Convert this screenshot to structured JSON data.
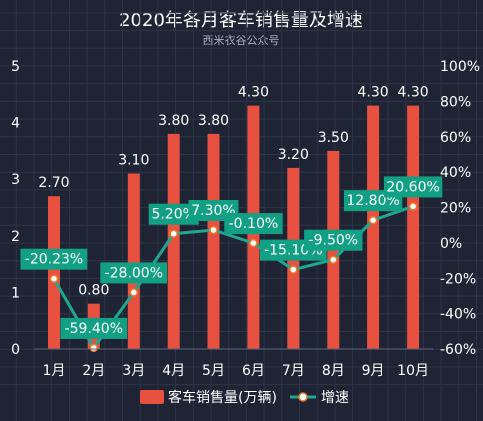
{
  "chart_data": {
    "type": "bar",
    "title": "2020年各月客车销售量及增速",
    "subtitle": "西米衣谷公众号",
    "categories": [
      "1月",
      "2月",
      "3月",
      "4月",
      "5月",
      "6月",
      "7月",
      "8月",
      "9月",
      "10月"
    ],
    "series": [
      {
        "name": "客车销售量(万辆)",
        "type": "bar",
        "axis": "left",
        "color": "#e8503f",
        "values": [
          2.7,
          0.8,
          3.1,
          3.8,
          3.8,
          4.3,
          3.2,
          3.5,
          4.3,
          4.3
        ],
        "labels": [
          "2.70",
          "0.80",
          "3.10",
          "3.80",
          "3.80",
          "4.30",
          "3.20",
          "3.50",
          "4.30",
          "4.30"
        ]
      },
      {
        "name": "增速",
        "type": "line",
        "axis": "right",
        "color": "#1fa88f",
        "values": [
          -20.23,
          -59.4,
          -28.0,
          5.2,
          7.3,
          -0.1,
          -15.1,
          -9.5,
          12.8,
          20.6
        ],
        "labels": [
          "-20.23%",
          "-59.40%",
          "-28.00%",
          "5.20%",
          "7.30%",
          "-0.10%",
          "-15.10%",
          "-9.50%",
          "12.80%",
          "20.60%"
        ]
      }
    ],
    "left_axis": {
      "ylim": [
        0,
        5
      ],
      "ticks": [
        "0",
        "1",
        "2",
        "3",
        "4",
        "5"
      ]
    },
    "right_axis": {
      "ylim": [
        -60,
        100
      ],
      "ticks": [
        "-60%",
        "-40%",
        "-20%",
        "0%",
        "20%",
        "40%",
        "60%",
        "80%",
        "100%"
      ]
    },
    "grid": true,
    "legend_position": "bottom"
  },
  "colors": {
    "background": "#1e2434",
    "grid": "#2c3447",
    "bar": "#e8503f",
    "line": "#1fa88f",
    "badge": "#12a085"
  }
}
